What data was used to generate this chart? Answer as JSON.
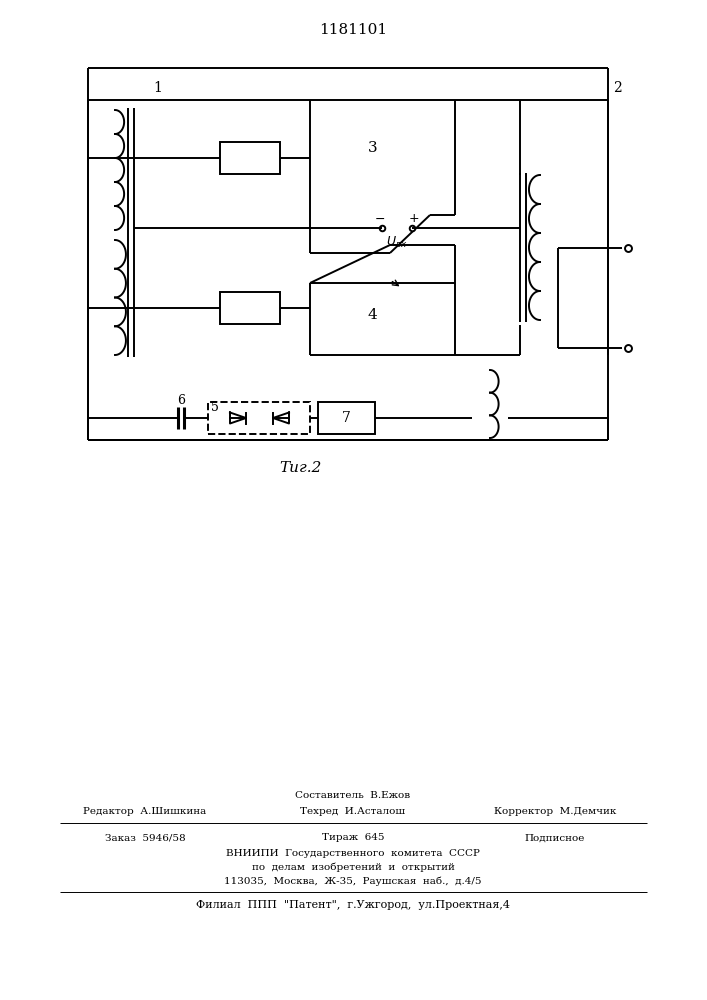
{
  "title": "1181101",
  "fig_label": "Τиг.2",
  "background_color": "#ffffff",
  "line_color": "#000000",
  "line_width": 1.4,
  "footer": {
    "sestavitel": "Составитель  В.Ежов",
    "redaktor": "Редактор  А.Шишкина",
    "tehred": "Техред  И.Асталош",
    "korrektor": "Корректор  М.Демчик",
    "zakaz": "Заказ  5946/58",
    "tirazh": "Тираж  645",
    "podpisnoe": "Подписное",
    "vniip1": "ВНИИПИ  Государственного  комитета  СССР",
    "vniip2": "по  делам  изобретений  и  открытий",
    "vniip3": "113035,  Москва,  Ж-35,  Раушская  наб.,  д.4/5",
    "filial": "Филиал  ППП  \"Патент\",  г.Ужгород,  ул.Проектная,4"
  }
}
